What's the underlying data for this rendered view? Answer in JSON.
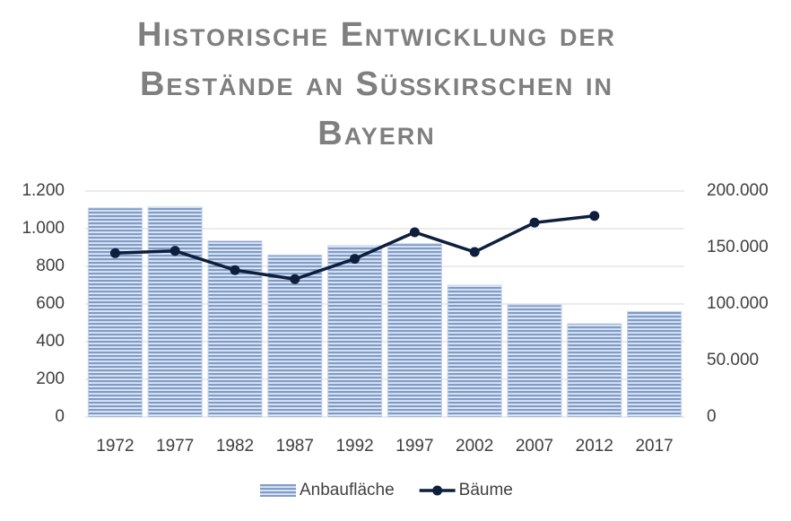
{
  "chart_data": {
    "type": "bar_line",
    "title": "Historische Entwicklung der Bestände an Süßkirschen in Bayern",
    "categories": [
      "1972",
      "1977",
      "1982",
      "1987",
      "1992",
      "1997",
      "2002",
      "2007",
      "2012",
      "2017"
    ],
    "series": [
      {
        "name": "Anbaufläche",
        "type": "bar",
        "color": "#7f9cc9",
        "values": [
          1110,
          1115,
          935,
          860,
          910,
          920,
          700,
          595,
          495,
          560
        ]
      },
      {
        "name": "Bäume",
        "type": "line",
        "axis": "y2",
        "color": "#0d1f3c",
        "values": [
          145000,
          147000,
          130000,
          122000,
          140000,
          163500,
          146000,
          172000,
          178000,
          null
        ]
      }
    ],
    "ylim": [
      0,
      1200
    ],
    "yticks": [
      0,
      200,
      400,
      600,
      800,
      {
        "value": 1000,
        "label": "1.000"
      },
      {
        "value": 1200,
        "label": "1.200"
      }
    ],
    "y2lim": [
      0,
      200000
    ],
    "y2ticks": [
      0,
      {
        "value": 50000,
        "label": "50.000"
      },
      {
        "value": 100000,
        "label": "100.000"
      },
      {
        "value": 150000,
        "label": "150.000"
      },
      {
        "value": 200000,
        "label": "200.000"
      }
    ],
    "grid": true,
    "legend": "bottom"
  }
}
